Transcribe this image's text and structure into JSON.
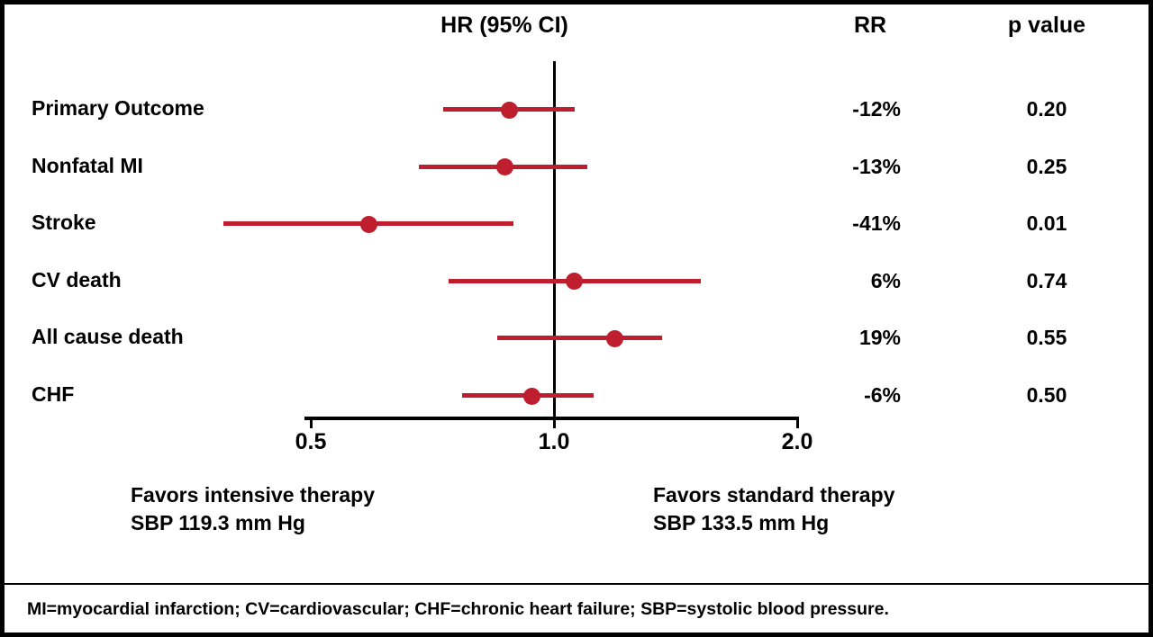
{
  "chart_data": {
    "type": "forest",
    "title": "HR (95% CI)",
    "x_scale": "log",
    "xlim": [
      0.5,
      2.0
    ],
    "reference_line": 1.0,
    "x_ticks": [
      0.5,
      1.0,
      2.0
    ],
    "x_tick_labels": [
      "0.5",
      "1.0",
      "2.0"
    ],
    "header": {
      "hr": "HR (95% CI)",
      "rr": "RR",
      "p": "p value"
    },
    "rows": [
      {
        "label": "Primary Outcome",
        "hr": 0.88,
        "ci_low": 0.73,
        "ci_high": 1.06,
        "rr": "-12%",
        "p": "0.20"
      },
      {
        "label": "Nonfatal MI",
        "hr": 0.87,
        "ci_low": 0.68,
        "ci_high": 1.1,
        "rr": "-13%",
        "p": "0.25"
      },
      {
        "label": "Stroke",
        "hr": 0.59,
        "ci_low": 0.39,
        "ci_high": 0.89,
        "rr": "-41%",
        "p": "0.01"
      },
      {
        "label": "CV death",
        "hr": 1.06,
        "ci_low": 0.74,
        "ci_high": 1.52,
        "rr": "6%",
        "p": "0.74"
      },
      {
        "label": "All cause death",
        "hr": 1.19,
        "ci_low": 0.85,
        "ci_high": 1.36,
        "rr": "19%",
        "p": "0.55"
      },
      {
        "label": "CHF",
        "hr": 0.94,
        "ci_low": 0.77,
        "ci_high": 1.12,
        "rr": "-6%",
        "p": "0.50"
      }
    ],
    "annotations": {
      "left": [
        "Favors intensive therapy",
        "SBP 119.3 mm Hg"
      ],
      "right": [
        "Favors standard therapy",
        "SBP 133.5 mm Hg"
      ]
    },
    "footnote": "MI=myocardial infarction; CV=cardiovascular; CHF=chronic heart failure; SBP=systolic blood pressure.",
    "colors": {
      "marker": "#be1e2d",
      "text": "#000000",
      "axis": "#000000",
      "background": "#ffffff",
      "border": "#000000"
    }
  }
}
